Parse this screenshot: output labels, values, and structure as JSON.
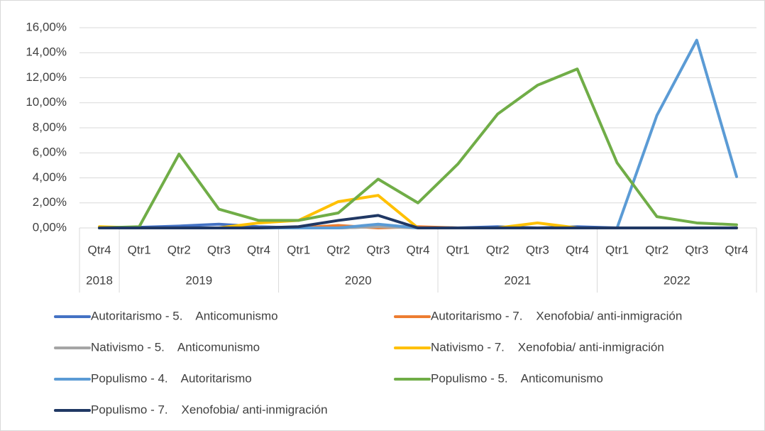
{
  "chart_data": {
    "type": "line",
    "categories": [
      "Qtr4",
      "Qtr1",
      "Qtr2",
      "Qtr3",
      "Qtr4",
      "Qtr1",
      "Qtr2",
      "Qtr3",
      "Qtr4",
      "Qtr1",
      "Qtr2",
      "Qtr3",
      "Qtr4",
      "Qtr1",
      "Qtr2",
      "Qtr3",
      "Qtr4"
    ],
    "groups": [
      {
        "label": "2018",
        "count": 1
      },
      {
        "label": "2019",
        "count": 4
      },
      {
        "label": "2020",
        "count": 4
      },
      {
        "label": "2021",
        "count": 4
      },
      {
        "label": "2022",
        "count": 4
      }
    ],
    "ylim": [
      0,
      16
    ],
    "yticks": [
      {
        "value": 0,
        "label": "0,00%"
      },
      {
        "value": 2,
        "label": "2,00%"
      },
      {
        "value": 4,
        "label": "4,00%"
      },
      {
        "value": 6,
        "label": "6,00%"
      },
      {
        "value": 8,
        "label": "8,00%"
      },
      {
        "value": 10,
        "label": "10,00%"
      },
      {
        "value": 12,
        "label": "12,00%"
      },
      {
        "value": 14,
        "label": "14,00%"
      },
      {
        "value": 16,
        "label": "16,00%"
      }
    ],
    "grid": true,
    "series": [
      {
        "name": "Autoritarismo - 5.    Anticomunismo",
        "color": "#4472c4",
        "values": [
          0,
          0.05,
          0.15,
          0.3,
          0.1,
          0,
          0,
          0.1,
          0.05,
          0,
          0.1,
          0,
          0.1,
          0,
          0,
          0,
          0
        ]
      },
      {
        "name": "Autoritarismo - 7.    Xenofobia/ anti-inmigración",
        "color": "#ed7d31",
        "values": [
          0,
          0,
          0,
          0,
          0,
          0,
          0.2,
          0,
          0.1,
          0,
          0,
          0,
          0,
          0,
          0,
          0,
          0
        ]
      },
      {
        "name": "Nativismo - 5.    Anticomunismo",
        "color": "#a5a5a5",
        "values": [
          0,
          0,
          0,
          0,
          0,
          0,
          0,
          0.1,
          0,
          0,
          0,
          0,
          0,
          0,
          0,
          0,
          0
        ]
      },
      {
        "name": "Nativismo - 7.    Xenofobia/ anti-inmigración",
        "color": "#ffc000",
        "values": [
          0.1,
          0,
          0,
          0,
          0.4,
          0.6,
          2.1,
          2.6,
          0,
          0,
          0,
          0.4,
          0,
          0,
          0,
          0,
          0
        ]
      },
      {
        "name": "Populismo - 4.    Autoritarismo",
        "color": "#5b9bd5",
        "values": [
          0,
          0,
          0,
          0,
          0,
          0,
          0,
          0.3,
          0,
          0,
          0,
          0,
          0,
          0,
          9.0,
          15.0,
          4.1
        ]
      },
      {
        "name": "Populismo - 5.    Anticomunismo",
        "color": "#70ad47",
        "values": [
          0,
          0.1,
          5.9,
          1.5,
          0.6,
          0.6,
          1.2,
          3.9,
          2.0,
          5.1,
          9.1,
          11.4,
          12.7,
          5.2,
          0.9,
          0.4,
          0.25
        ]
      },
      {
        "name": "Populismo - 7.    Xenofobia/ anti-inmigración",
        "color": "#203864",
        "values": [
          0,
          0,
          0,
          0,
          0,
          0.1,
          0.6,
          1.0,
          0,
          0,
          0,
          0,
          0,
          0,
          0,
          0,
          0
        ]
      }
    ]
  }
}
